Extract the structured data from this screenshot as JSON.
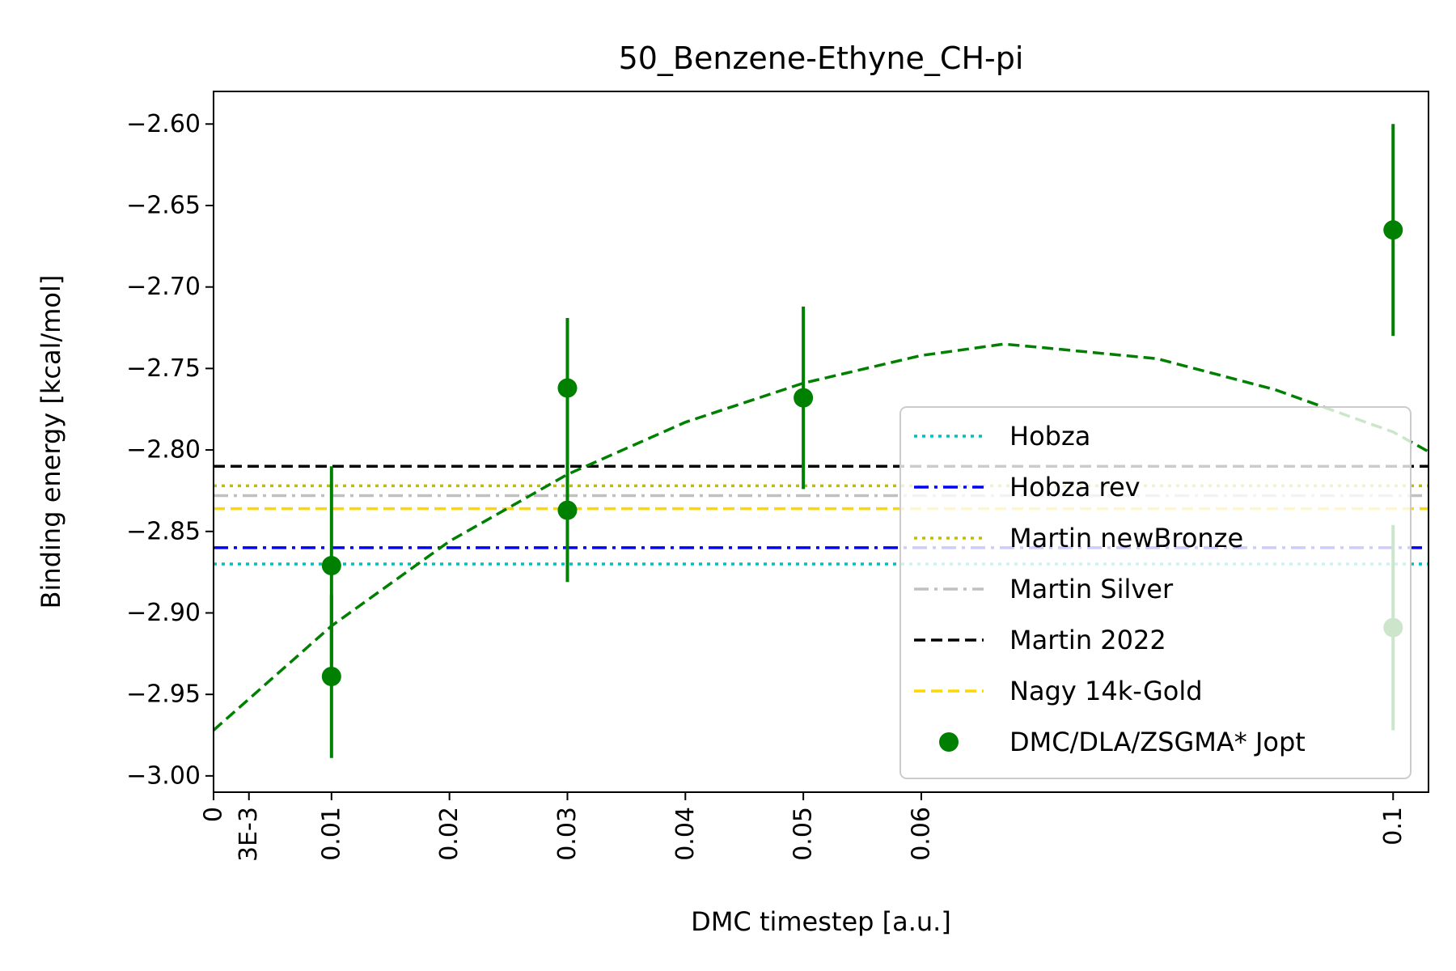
{
  "chart_data": {
    "type": "scatter",
    "title": "50_Benzene-Ethyne_CH-pi",
    "xlabel": "DMC timestep [a.u.]",
    "ylabel": "Binding energy [kcal/mol]",
    "xlim": [
      0,
      0.103
    ],
    "ylim": [
      -3.01,
      -2.58
    ],
    "x_ticks": [
      {
        "value": 0,
        "label": "0"
      },
      {
        "value": 0.003,
        "label": "3E-3"
      },
      {
        "value": 0.01,
        "label": "0.01"
      },
      {
        "value": 0.02,
        "label": "0.02"
      },
      {
        "value": 0.03,
        "label": "0.03"
      },
      {
        "value": 0.04,
        "label": "0.04"
      },
      {
        "value": 0.05,
        "label": "0.05"
      },
      {
        "value": 0.06,
        "label": "0.06"
      },
      {
        "value": 0.1,
        "label": "0.1"
      }
    ],
    "y_ticks": [
      {
        "value": -3.0,
        "label": "−3.00"
      },
      {
        "value": -2.95,
        "label": "−2.95"
      },
      {
        "value": -2.9,
        "label": "−2.90"
      },
      {
        "value": -2.85,
        "label": "−2.85"
      },
      {
        "value": -2.8,
        "label": "−2.80"
      },
      {
        "value": -2.75,
        "label": "−2.75"
      },
      {
        "value": -2.7,
        "label": "−2.70"
      },
      {
        "value": -2.65,
        "label": "−2.65"
      },
      {
        "value": -2.6,
        "label": "−2.60"
      }
    ],
    "reference_lines": [
      {
        "name": "Hobza",
        "y": -2.87,
        "color": "#00bfbf",
        "style": "dotted"
      },
      {
        "name": "Hobza rev",
        "y": -2.86,
        "color": "#0000ff",
        "style": "dashdot"
      },
      {
        "name": "Martin newBronze",
        "y": -2.822,
        "color": "#bfbf00",
        "style": "dotted"
      },
      {
        "name": "Martin Silver",
        "y": -2.828,
        "color": "#c0c0c0",
        "style": "dashdot"
      },
      {
        "name": "Martin 2022",
        "y": -2.81,
        "color": "#000000",
        "style": "dashed"
      },
      {
        "name": "Nagy 14k-Gold",
        "y": -2.836,
        "color": "#ffd700",
        "style": "dashed"
      }
    ],
    "series": [
      {
        "name": "DMC/DLA/ZSGMA* Jopt",
        "color": "#008000",
        "points": [
          {
            "x": 0.01,
            "y": -2.871,
            "err": 0.061
          },
          {
            "x": 0.01,
            "y": -2.939,
            "err": 0.05
          },
          {
            "x": 0.03,
            "y": -2.762,
            "err": 0.043
          },
          {
            "x": 0.03,
            "y": -2.837,
            "err": 0.044
          },
          {
            "x": 0.05,
            "y": -2.768,
            "err": 0.056
          },
          {
            "x": 0.1,
            "y": -2.665,
            "err": 0.065
          },
          {
            "x": 0.1,
            "y": -2.909,
            "err": 0.063
          }
        ]
      }
    ],
    "fit": {
      "color": "#008000",
      "style": "dashed",
      "x": [
        0,
        0.01,
        0.02,
        0.03,
        0.04,
        0.05,
        0.06,
        0.067,
        0.07,
        0.08,
        0.09,
        0.1,
        0.103
      ],
      "y": [
        -2.972,
        -2.908,
        -2.856,
        -2.815,
        -2.783,
        -2.759,
        -2.742,
        -2.735,
        -2.737,
        -2.744,
        -2.763,
        -2.789,
        -2.801
      ]
    },
    "legend_position": "lower-right"
  }
}
